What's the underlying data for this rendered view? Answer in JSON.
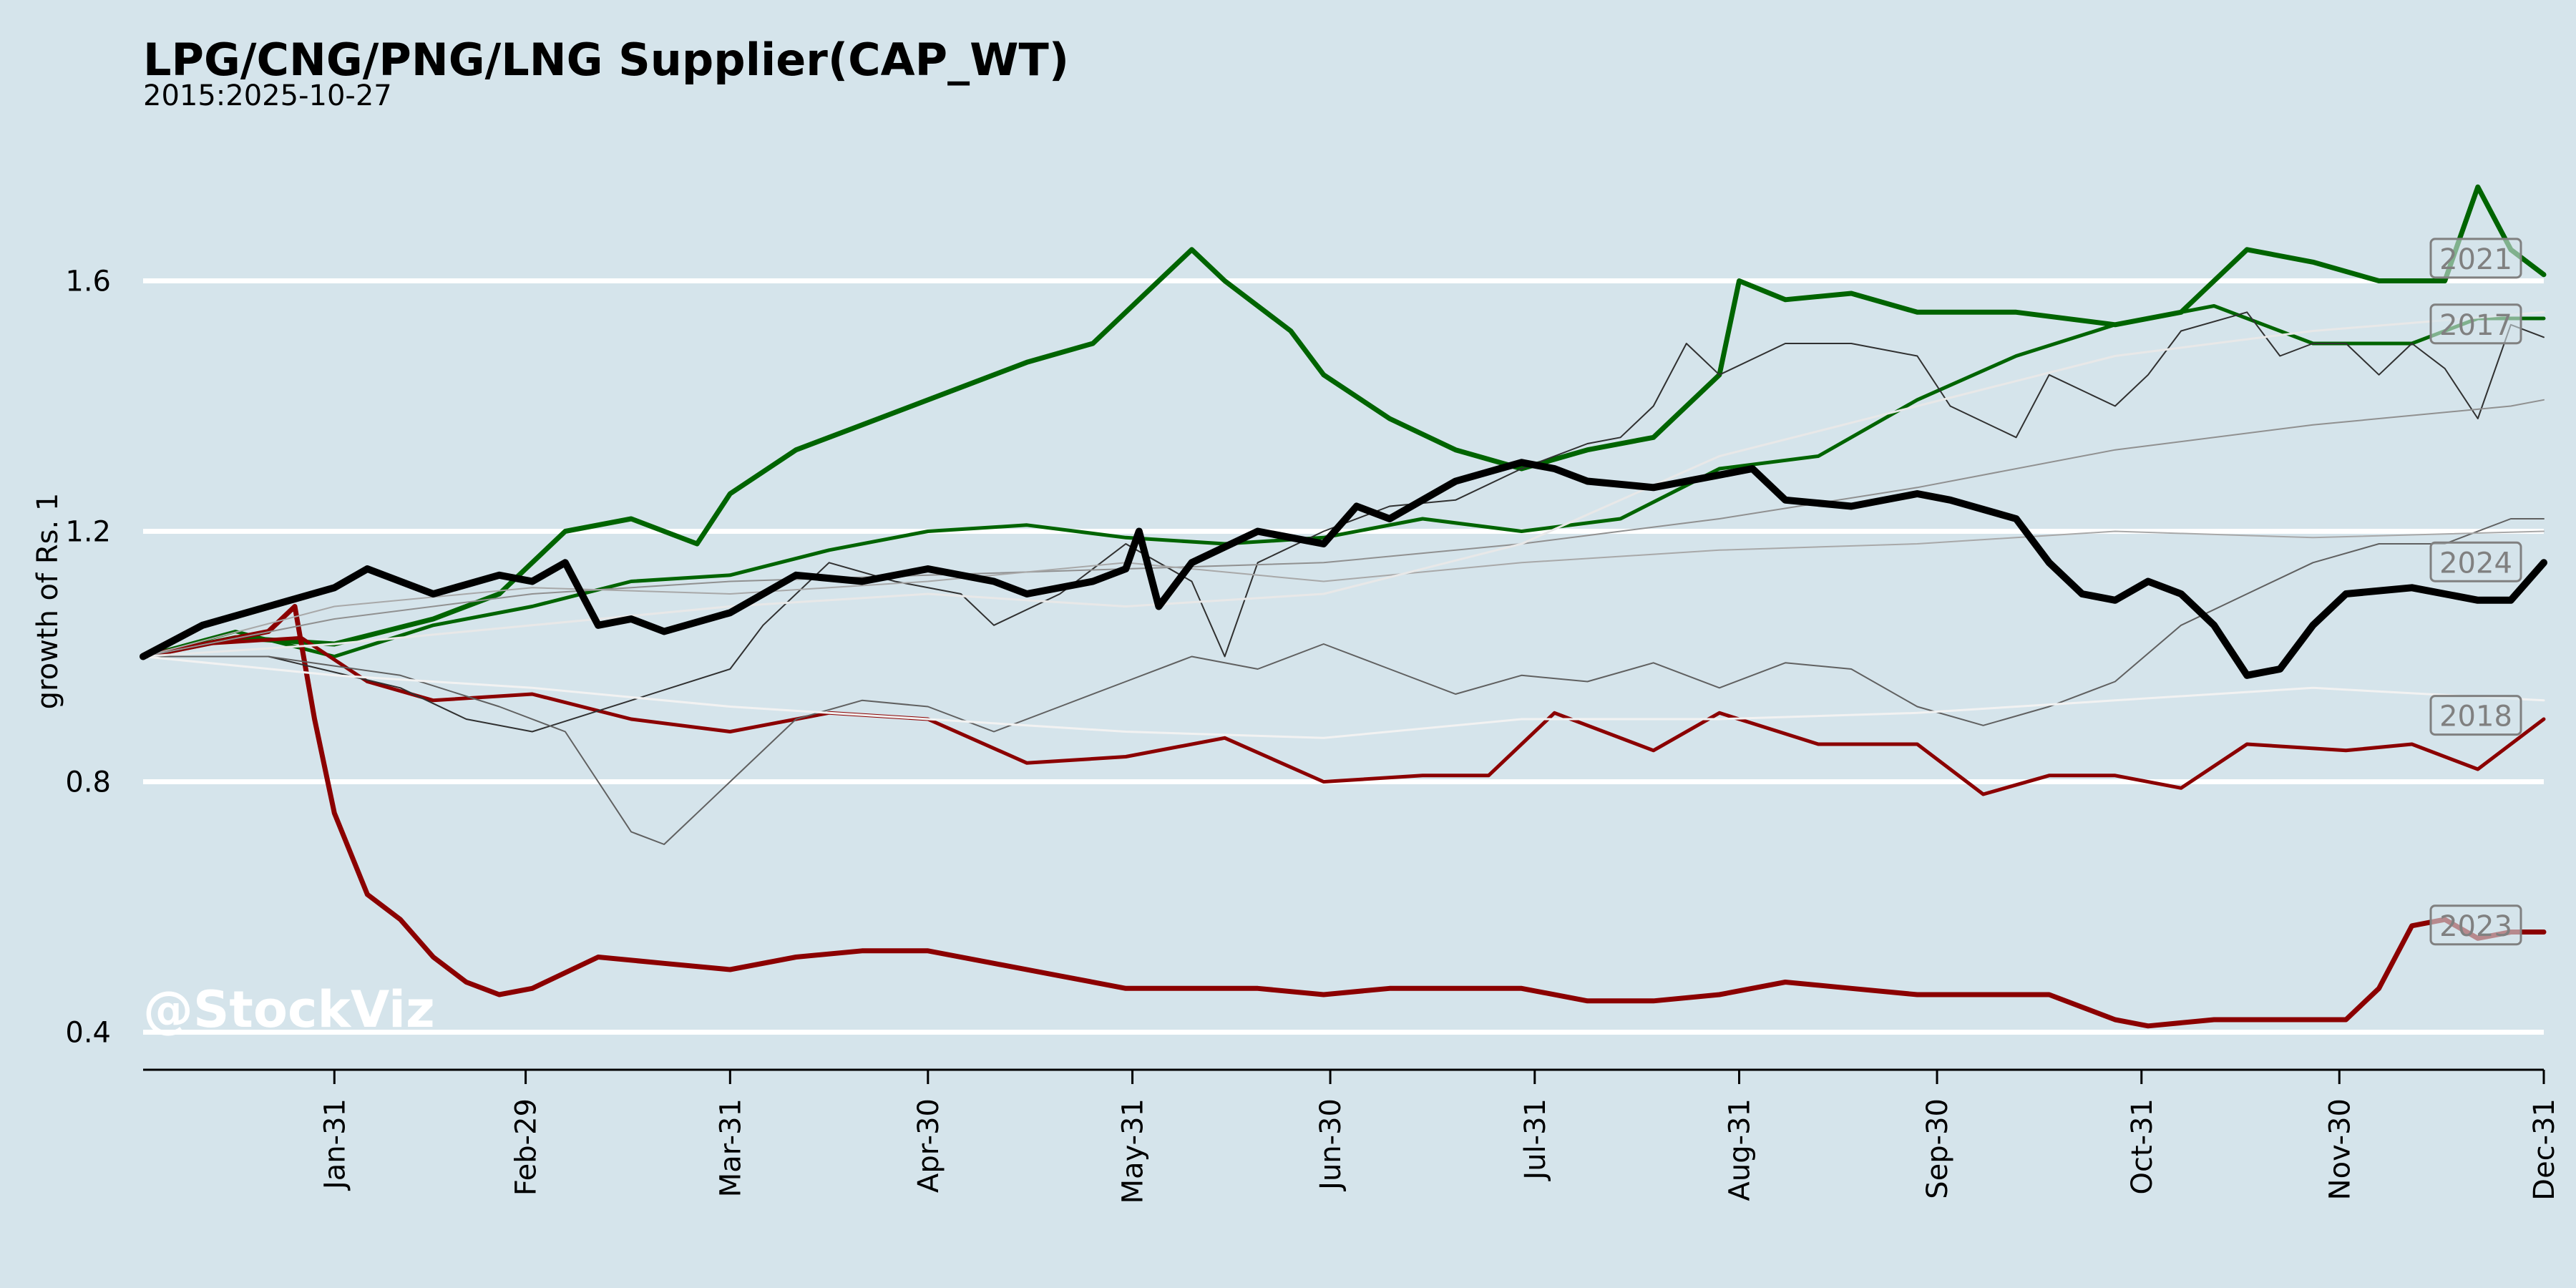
{
  "chart_data": {
    "type": "line",
    "title": "LPG/CNG/PNG/LNG Supplier(CAP_WT)",
    "subtitle": "2015:2025-10-27",
    "ylabel": "growth of Rs. 1",
    "xlabel": "",
    "watermark": "@StockViz",
    "x_ticks": [
      "Jan-31",
      "Feb-29",
      "Mar-31",
      "Apr-30",
      "May-31",
      "Jun-30",
      "Jul-31",
      "Aug-31",
      "Sep-30",
      "Oct-31",
      "Nov-30",
      "Dec-31"
    ],
    "x_tick_days": [
      30,
      59,
      90,
      120,
      151,
      181,
      212,
      243,
      273,
      304,
      334,
      365
    ],
    "xlim": [
      1,
      365
    ],
    "y_ticks": [
      0.4,
      0.8,
      1.2,
      1.6
    ],
    "ylim": [
      0.34,
      1.82
    ],
    "grid": "horizontal",
    "colors": {
      "background": "#d5e4eb",
      "grid": "#ffffff",
      "up": "#006400",
      "down": "#8b0000",
      "current": "#000000",
      "neutral": "#505050",
      "light": "#f0f0f0"
    },
    "series": [
      {
        "name": "2021",
        "color": "#006400",
        "width": 7,
        "x": [
          1,
          15,
          30,
          45,
          55,
          65,
          75,
          85,
          90,
          100,
          110,
          125,
          135,
          145,
          155,
          160,
          165,
          175,
          180,
          190,
          200,
          210,
          220,
          230,
          240,
          243,
          250,
          260,
          270,
          285,
          300,
          310,
          320,
          330,
          340,
          350,
          355,
          360,
          365
        ],
        "y": [
          1.0,
          1.03,
          1.02,
          1.06,
          1.1,
          1.2,
          1.22,
          1.18,
          1.26,
          1.33,
          1.37,
          1.43,
          1.47,
          1.5,
          1.6,
          1.65,
          1.6,
          1.52,
          1.45,
          1.38,
          1.33,
          1.3,
          1.33,
          1.35,
          1.45,
          1.6,
          1.57,
          1.58,
          1.55,
          1.55,
          1.53,
          1.55,
          1.65,
          1.63,
          1.6,
          1.6,
          1.75,
          1.65,
          1.61
        ]
      },
      {
        "name": "2017",
        "color": "#006400",
        "width": 5,
        "x": [
          1,
          15,
          30,
          45,
          60,
          75,
          90,
          105,
          120,
          135,
          150,
          165,
          180,
          195,
          210,
          225,
          240,
          255,
          270,
          285,
          300,
          315,
          330,
          345,
          355,
          365
        ],
        "y": [
          1.0,
          1.04,
          1.0,
          1.05,
          1.08,
          1.12,
          1.13,
          1.17,
          1.2,
          1.21,
          1.19,
          1.18,
          1.19,
          1.22,
          1.2,
          1.22,
          1.3,
          1.32,
          1.41,
          1.48,
          1.53,
          1.56,
          1.5,
          1.5,
          1.54,
          1.54
        ]
      },
      {
        "name": "2018",
        "color": "#8b0000",
        "width": 5,
        "x": [
          1,
          10,
          25,
          35,
          45,
          60,
          75,
          90,
          105,
          120,
          135,
          150,
          165,
          180,
          195,
          205,
          215,
          230,
          240,
          255,
          270,
          280,
          290,
          300,
          310,
          320,
          335,
          345,
          355,
          365
        ],
        "y": [
          1.0,
          1.02,
          1.03,
          0.96,
          0.93,
          0.94,
          0.9,
          0.88,
          0.91,
          0.9,
          0.83,
          0.84,
          0.87,
          0.8,
          0.81,
          0.81,
          0.91,
          0.85,
          0.91,
          0.86,
          0.86,
          0.78,
          0.81,
          0.81,
          0.79,
          0.86,
          0.85,
          0.86,
          0.82,
          0.9
        ]
      },
      {
        "name": "2023",
        "color": "#8b0000",
        "width": 7,
        "x": [
          1,
          20,
          24,
          27,
          30,
          35,
          40,
          45,
          50,
          55,
          60,
          70,
          80,
          90,
          100,
          110,
          120,
          130,
          140,
          150,
          160,
          170,
          180,
          190,
          200,
          210,
          220,
          230,
          240,
          250,
          260,
          270,
          280,
          290,
          300,
          305,
          315,
          325,
          330,
          335,
          340,
          345,
          350,
          355,
          360,
          365
        ],
        "y": [
          1.0,
          1.04,
          1.08,
          0.9,
          0.75,
          0.62,
          0.58,
          0.52,
          0.48,
          0.46,
          0.47,
          0.52,
          0.51,
          0.5,
          0.52,
          0.53,
          0.53,
          0.51,
          0.49,
          0.47,
          0.47,
          0.47,
          0.46,
          0.47,
          0.47,
          0.47,
          0.45,
          0.45,
          0.46,
          0.48,
          0.47,
          0.46,
          0.46,
          0.46,
          0.42,
          0.41,
          0.42,
          0.42,
          0.42,
          0.42,
          0.47,
          0.57,
          0.58,
          0.55,
          0.56,
          0.56
        ]
      },
      {
        "name": "2024",
        "color": "#000000",
        "width": 10,
        "x": [
          1,
          10,
          20,
          30,
          35,
          40,
          45,
          55,
          60,
          65,
          70,
          75,
          80,
          90,
          100,
          110,
          120,
          130,
          135,
          145,
          150,
          152,
          155,
          160,
          170,
          180,
          185,
          190,
          200,
          210,
          215,
          220,
          230,
          240,
          245,
          250,
          260,
          270,
          275,
          285,
          290,
          295,
          300,
          305,
          310,
          315,
          320,
          325,
          330,
          335,
          345,
          355,
          360,
          365
        ],
        "y": [
          1.0,
          1.05,
          1.08,
          1.11,
          1.14,
          1.12,
          1.1,
          1.13,
          1.12,
          1.15,
          1.05,
          1.06,
          1.04,
          1.07,
          1.13,
          1.12,
          1.14,
          1.12,
          1.1,
          1.12,
          1.14,
          1.2,
          1.08,
          1.15,
          1.2,
          1.18,
          1.24,
          1.22,
          1.28,
          1.31,
          1.3,
          1.28,
          1.27,
          1.29,
          1.3,
          1.25,
          1.24,
          1.26,
          1.25,
          1.22,
          1.15,
          1.1,
          1.09,
          1.12,
          1.1,
          1.05,
          0.97,
          0.98,
          1.05,
          1.1,
          1.11,
          1.09,
          1.09,
          1.15
        ]
      },
      {
        "name": "",
        "color": "#303030",
        "width": 2,
        "x": [
          1,
          20,
          40,
          50,
          60,
          75,
          90,
          95,
          105,
          115,
          125,
          130,
          140,
          150,
          160,
          165,
          170,
          180,
          190,
          200,
          210,
          220,
          225,
          230,
          235,
          240,
          250,
          260,
          270,
          275,
          285,
          290,
          300,
          305,
          310,
          320,
          325,
          330,
          335,
          340,
          345,
          350,
          355,
          360,
          365
        ],
        "y": [
          1.0,
          1.0,
          0.95,
          0.9,
          0.88,
          0.93,
          0.98,
          1.05,
          1.15,
          1.12,
          1.1,
          1.05,
          1.1,
          1.18,
          1.12,
          1.0,
          1.15,
          1.2,
          1.24,
          1.25,
          1.3,
          1.34,
          1.35,
          1.4,
          1.5,
          1.45,
          1.5,
          1.5,
          1.48,
          1.4,
          1.35,
          1.45,
          1.4,
          1.45,
          1.52,
          1.55,
          1.48,
          1.5,
          1.5,
          1.45,
          1.5,
          1.46,
          1.38,
          1.53,
          1.51
        ]
      },
      {
        "name": "",
        "color": "#606060",
        "width": 2,
        "x": [
          1,
          20,
          40,
          55,
          65,
          70,
          75,
          80,
          85,
          90,
          100,
          110,
          120,
          130,
          140,
          150,
          160,
          170,
          180,
          190,
          200,
          210,
          220,
          230,
          240,
          250,
          260,
          270,
          280,
          290,
          300,
          310,
          320,
          330,
          340,
          350,
          360,
          365
        ],
        "y": [
          1.0,
          1.0,
          0.97,
          0.92,
          0.88,
          0.8,
          0.72,
          0.7,
          0.75,
          0.8,
          0.9,
          0.93,
          0.92,
          0.88,
          0.92,
          0.96,
          1.0,
          0.98,
          1.02,
          0.98,
          0.94,
          0.97,
          0.96,
          0.99,
          0.95,
          0.99,
          0.98,
          0.92,
          0.89,
          0.92,
          0.96,
          1.05,
          1.1,
          1.15,
          1.18,
          1.18,
          1.22,
          1.22
        ]
      },
      {
        "name": "",
        "color": "#909090",
        "width": 2,
        "x": [
          1,
          30,
          60,
          90,
          120,
          150,
          180,
          210,
          240,
          270,
          300,
          330,
          360,
          365
        ],
        "y": [
          1.0,
          1.06,
          1.1,
          1.12,
          1.13,
          1.14,
          1.15,
          1.18,
          1.22,
          1.27,
          1.33,
          1.37,
          1.4,
          1.41
        ]
      },
      {
        "name": "",
        "color": "#a8a8a8",
        "width": 2,
        "x": [
          1,
          30,
          60,
          90,
          120,
          150,
          180,
          210,
          240,
          270,
          300,
          330,
          365
        ],
        "y": [
          1.0,
          1.08,
          1.11,
          1.1,
          1.12,
          1.15,
          1.12,
          1.15,
          1.17,
          1.18,
          1.2,
          1.19,
          1.2
        ]
      },
      {
        "name": "",
        "color": "#f2f2f2",
        "width": 3,
        "x": [
          1,
          30,
          60,
          90,
          120,
          150,
          180,
          210,
          240,
          270,
          300,
          330,
          365
        ],
        "y": [
          1.0,
          0.97,
          0.95,
          0.92,
          0.9,
          0.88,
          0.87,
          0.9,
          0.9,
          0.91,
          0.93,
          0.95,
          0.93
        ]
      },
      {
        "name": "",
        "color": "#e8e8e8",
        "width": 3,
        "x": [
          1,
          30,
          60,
          90,
          120,
          150,
          180,
          210,
          240,
          270,
          300,
          330,
          365
        ],
        "y": [
          1.0,
          1.02,
          1.05,
          1.08,
          1.1,
          1.08,
          1.1,
          1.18,
          1.32,
          1.4,
          1.48,
          1.52,
          1.55
        ]
      }
    ],
    "year_labels": [
      {
        "text": "2021",
        "y": 1.635
      },
      {
        "text": "2017",
        "y": 1.53
      },
      {
        "text": "2024",
        "y": 1.15
      },
      {
        "text": "2018",
        "y": 0.905
      },
      {
        "text": "2023",
        "y": 0.57
      }
    ]
  }
}
